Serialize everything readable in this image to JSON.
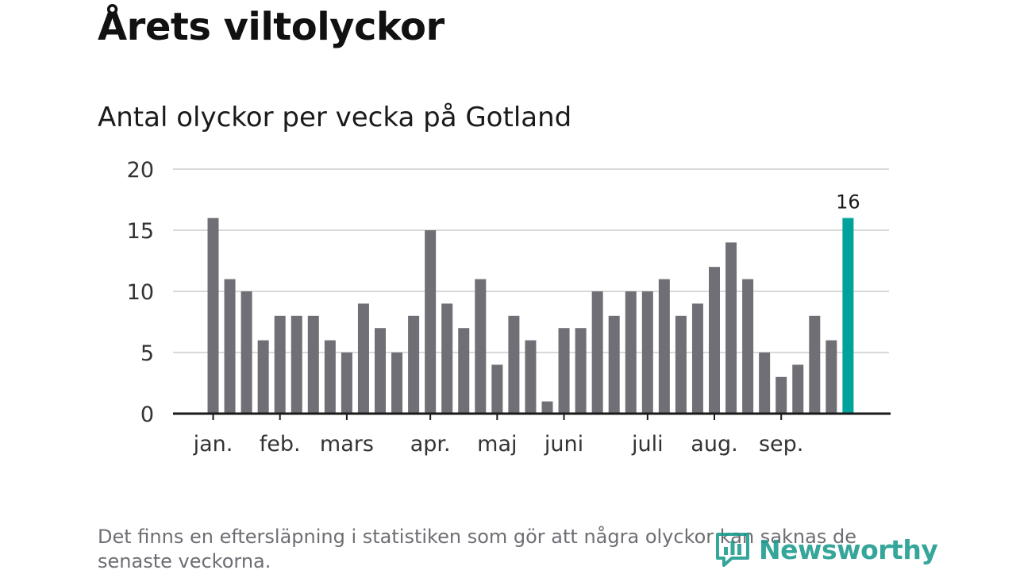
{
  "header": {
    "title": "Årets viltolyckor",
    "subtitle": "Antal olyckor per vecka på Gotland"
  },
  "footer": {
    "note": "Det finns en eftersläpning i statistiken som gör att några olyckor kan saknas de senaste veckorna.",
    "logo_text": "Newsworthy"
  },
  "colors": {
    "bar": "#706f75",
    "highlight": "#00a29b",
    "gridline": "#d9d9d9",
    "axis": "#1a1a1a",
    "logo": "#1a9a8c"
  },
  "chart_data": {
    "type": "bar",
    "title": "Antal olyckor per vecka på Gotland",
    "xlabel": "",
    "ylabel": "",
    "ylim": [
      0,
      20
    ],
    "yticks": [
      0,
      5,
      10,
      15,
      20
    ],
    "grid": true,
    "legend": "none",
    "values": [
      16,
      11,
      10,
      6,
      8,
      8,
      8,
      6,
      5,
      9,
      7,
      5,
      8,
      15,
      9,
      7,
      11,
      4,
      8,
      6,
      1,
      7,
      7,
      10,
      8,
      10,
      10,
      11,
      8,
      9,
      12,
      14,
      11,
      5,
      3,
      4,
      8,
      6,
      16
    ],
    "month_labels": [
      {
        "label": "jan.",
        "week_index": 0
      },
      {
        "label": "feb.",
        "week_index": 4
      },
      {
        "label": "mars",
        "week_index": 8
      },
      {
        "label": "apr.",
        "week_index": 13
      },
      {
        "label": "maj",
        "week_index": 17
      },
      {
        "label": "juni",
        "week_index": 21
      },
      {
        "label": "juli",
        "week_index": 26
      },
      {
        "label": "aug.",
        "week_index": 30
      },
      {
        "label": "sep.",
        "week_index": 34
      }
    ],
    "highlight_index": 38,
    "annotations": [
      {
        "week_index": 38,
        "text": "16"
      }
    ]
  }
}
